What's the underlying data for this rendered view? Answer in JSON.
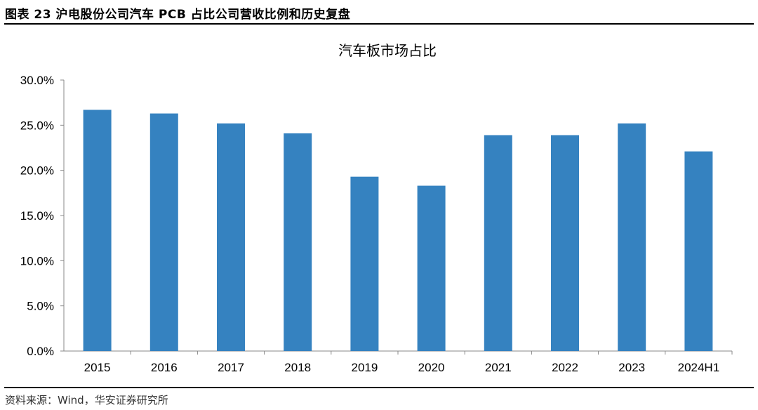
{
  "header": {
    "title": "图表 23 沪电股份公司汽车 PCB 占比公司营收比例和历史复盘"
  },
  "footer": {
    "source": "资料来源：Wind，华安证券研究所"
  },
  "colors": {
    "bar": "#3582c0",
    "axis": "#888888",
    "rule": "#000000"
  },
  "chart_data": {
    "type": "bar",
    "title": "汽车板市场占比",
    "xlabel": "",
    "ylabel": "",
    "categories": [
      "2015",
      "2016",
      "2017",
      "2018",
      "2019",
      "2020",
      "2021",
      "2022",
      "2023",
      "2024H1"
    ],
    "values": [
      26.7,
      26.3,
      25.2,
      24.1,
      19.3,
      18.3,
      23.9,
      23.9,
      25.2,
      22.1
    ],
    "value_format": "percent",
    "ylim": [
      0,
      30
    ],
    "yticks": [
      0,
      5,
      10,
      15,
      20,
      25,
      30
    ],
    "ytick_labels": [
      "0.0%",
      "5.0%",
      "10.0%",
      "15.0%",
      "20.0%",
      "25.0%",
      "30.0%"
    ],
    "grid": false,
    "legend": "none"
  }
}
